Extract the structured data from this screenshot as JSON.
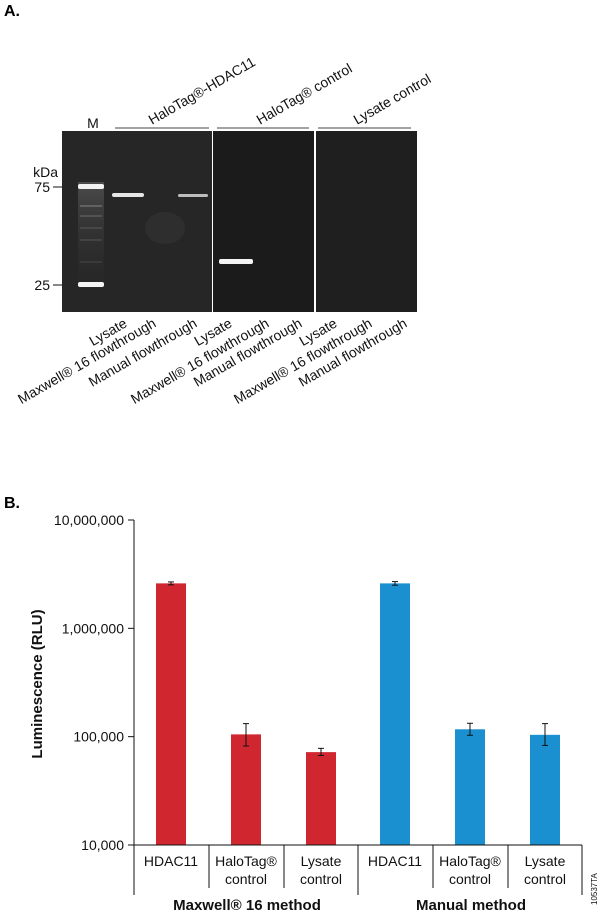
{
  "panel_a": {
    "label": "A.",
    "marker_lane": "M",
    "kda_unit": "kDa",
    "marker_ticks": [
      "75",
      "25"
    ],
    "groups": [
      "HaloTag®-HDAC11",
      "HaloTag® control",
      "Lysate control"
    ],
    "lanes": [
      "Lysate",
      "Maxwell® 16 flowthrough",
      "Manual flowthrough",
      "Lysate",
      "Maxwell® 16 flowthrough",
      "Manual flowthrough",
      "Lysate",
      "Maxwell® 16 flowthrough",
      "Manual flowthrough"
    ]
  },
  "panel_b": {
    "label": "B."
  },
  "figure_id": "10537TA",
  "chart_data": {
    "type": "bar",
    "ylabel": "Luminescence (RLU)",
    "yscale": "log",
    "ylim": [
      10000,
      10000000
    ],
    "yticks": [
      10000,
      100000,
      1000000,
      10000000
    ],
    "ytick_labels": [
      "10,000",
      "100,000",
      "1,000,000",
      "10,000,000"
    ],
    "groups": [
      "Maxwell® 16 method",
      "Manual method"
    ],
    "categories": [
      {
        "line1": "HDAC11",
        "line2": ""
      },
      {
        "line1": "HaloTag®",
        "line2": "control"
      },
      {
        "line1": "Lysate",
        "line2": "control"
      },
      {
        "line1": "HDAC11",
        "line2": ""
      },
      {
        "line1": "HaloTag®",
        "line2": "control"
      },
      {
        "line1": "Lysate",
        "line2": "control"
      }
    ],
    "values": [
      2600000,
      105000,
      72000,
      2600000,
      117000,
      104000
    ],
    "errors_low": [
      2520000,
      82000,
      67000,
      2500000,
      103000,
      83000
    ],
    "errors_high": [
      2680000,
      132000,
      78000,
      2700000,
      133000,
      132000
    ],
    "colors": [
      "#d02630",
      "#d02630",
      "#d02630",
      "#1a90d0",
      "#1a90d0",
      "#1a90d0"
    ]
  }
}
